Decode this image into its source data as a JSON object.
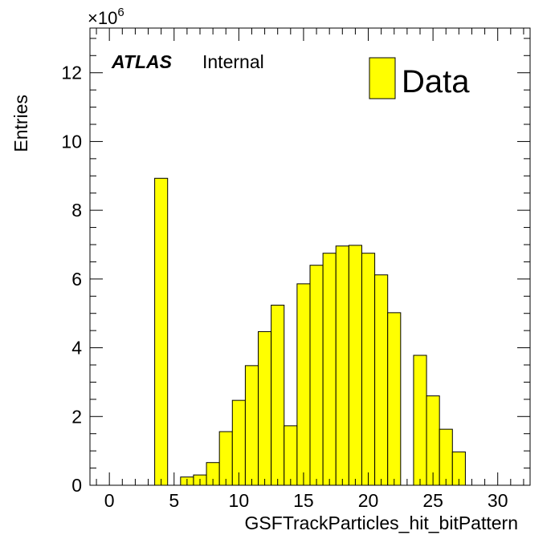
{
  "chart_data": {
    "type": "bar",
    "xlabel": "GSFTrackParticles_hit_bitPattern",
    "ylabel": "Entries",
    "y_multiplier_base": "×10",
    "y_multiplier_exp": "6",
    "xlim": [
      -1.5,
      32.5
    ],
    "ylim": [
      0,
      13.3
    ],
    "x_ticks": [
      0,
      5,
      10,
      15,
      20,
      25,
      30
    ],
    "y_ticks": [
      0,
      2,
      4,
      6,
      8,
      10,
      12
    ],
    "bin_width": 1,
    "bins": [
      {
        "center": 4,
        "value": 8.93
      },
      {
        "center": 6,
        "value": 0.24
      },
      {
        "center": 7,
        "value": 0.3
      },
      {
        "center": 8,
        "value": 0.66
      },
      {
        "center": 9,
        "value": 1.56
      },
      {
        "center": 10,
        "value": 2.47
      },
      {
        "center": 11,
        "value": 3.48
      },
      {
        "center": 12,
        "value": 4.47
      },
      {
        "center": 13,
        "value": 5.24
      },
      {
        "center": 14,
        "value": 1.73
      },
      {
        "center": 15,
        "value": 5.86
      },
      {
        "center": 16,
        "value": 6.4
      },
      {
        "center": 17,
        "value": 6.75
      },
      {
        "center": 18,
        "value": 6.96
      },
      {
        "center": 19,
        "value": 6.98
      },
      {
        "center": 20,
        "value": 6.75
      },
      {
        "center": 21,
        "value": 6.12
      },
      {
        "center": 22,
        "value": 5.02
      },
      {
        "center": 24,
        "value": 3.78
      },
      {
        "center": 25,
        "value": 2.6
      },
      {
        "center": 26,
        "value": 1.63
      },
      {
        "center": 27,
        "value": 0.97
      }
    ],
    "fill_color": "#ffff00",
    "legend": {
      "label": "Data",
      "placement": "top-right"
    },
    "annotation": {
      "experiment": "ATLAS",
      "status": "Internal"
    },
    "grid": false
  }
}
